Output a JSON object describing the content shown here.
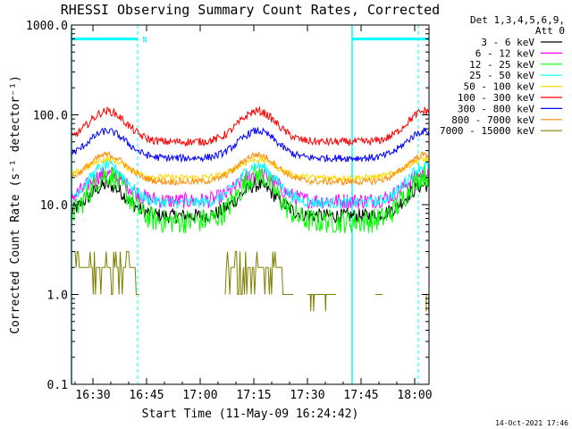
{
  "chart_data": {
    "type": "line",
    "title": "RHESSI Observing Summary Count Rates, Corrected",
    "xlabel": "Start Time (11-May-09 16:24:42)",
    "ylabel": "Corrected Count Rate (s⁻¹ detector⁻¹)",
    "yscale": "log",
    "ylim": [
      0.1,
      1000
    ],
    "xlim_minutes_after_1624": [
      0,
      100
    ],
    "x_ticks": [
      "16:30",
      "16:45",
      "17:00",
      "17:15",
      "17:30",
      "17:45",
      "18:00"
    ],
    "x_tick_minutes": [
      6,
      21,
      36,
      51,
      66,
      81,
      96
    ],
    "y_ticks": [
      "0.1",
      "1.0",
      "10.0",
      "100.0",
      "1000.0"
    ],
    "y_tick_values": [
      0.1,
      1,
      10,
      100,
      1000
    ],
    "grid": false,
    "legend_header": [
      "Det 1,3,4,5,6,9,",
      "Att 0"
    ],
    "legend_placement": "top-right outside",
    "series": [
      {
        "name": "3 - 6 keV",
        "color": "#000000",
        "base": 7.5,
        "amp": 2.2,
        "noise": 0.9
      },
      {
        "name": "6 - 12 keV",
        "color": "#ff00ff",
        "base": 11,
        "amp": 2.0,
        "noise": 1.0
      },
      {
        "name": "12 - 25 keV",
        "color": "#00ff00",
        "base": 6.5,
        "amp": 3.3,
        "noise": 1.5
      },
      {
        "name": "25 - 50 keV",
        "color": "#00ffff",
        "base": 10.5,
        "amp": 2.6,
        "noise": 0.7
      },
      {
        "name": "50 - 100 keV",
        "color": "#ffd700",
        "base": 20,
        "amp": 1.6,
        "noise": 0.4
      },
      {
        "name": "100 - 300 keV",
        "color": "#ff0000",
        "base": 50,
        "amp": 2.2,
        "noise": 0.5
      },
      {
        "name": "300 - 800 keV",
        "color": "#0000ff",
        "base": 33,
        "amp": 2.0,
        "noise": 0.45
      },
      {
        "name": "800 - 7000 keV",
        "color": "#ff8c00",
        "base": 18,
        "amp": 2.0,
        "noise": 0.4
      },
      {
        "name": "7000 - 15000 keV",
        "color": "#808000",
        "base": 1,
        "amp": 1,
        "noise": 0
      }
    ],
    "hump_centers_minutes": [
      10,
      52,
      99
    ],
    "hump_width_minutes": 7.5,
    "olive_segments_minutes": [
      [
        1,
        19
      ],
      [
        66,
        74
      ],
      [
        85,
        87
      ],
      [
        99,
        100
      ],
      [
        43,
        62
      ]
    ],
    "olive_burst_ranges_minutes": [
      [
        1,
        18
      ],
      [
        43,
        59
      ]
    ],
    "markers": {
      "solid_lines_minutes": [
        0,
        78.5
      ],
      "dashed_lines_minutes": [
        18.5,
        97
      ],
      "bars": [
        {
          "from": 0,
          "to": 18.5,
          "value": 700
        },
        {
          "from": 78.5,
          "to": 100,
          "value": 700
        }
      ],
      "label": "N",
      "label_at_minutes": 20.5
    },
    "colors": {
      "markers": "#00ffff",
      "axes": "#000000"
    }
  },
  "footer": {
    "date": "14-Oct-2021 17:46"
  }
}
